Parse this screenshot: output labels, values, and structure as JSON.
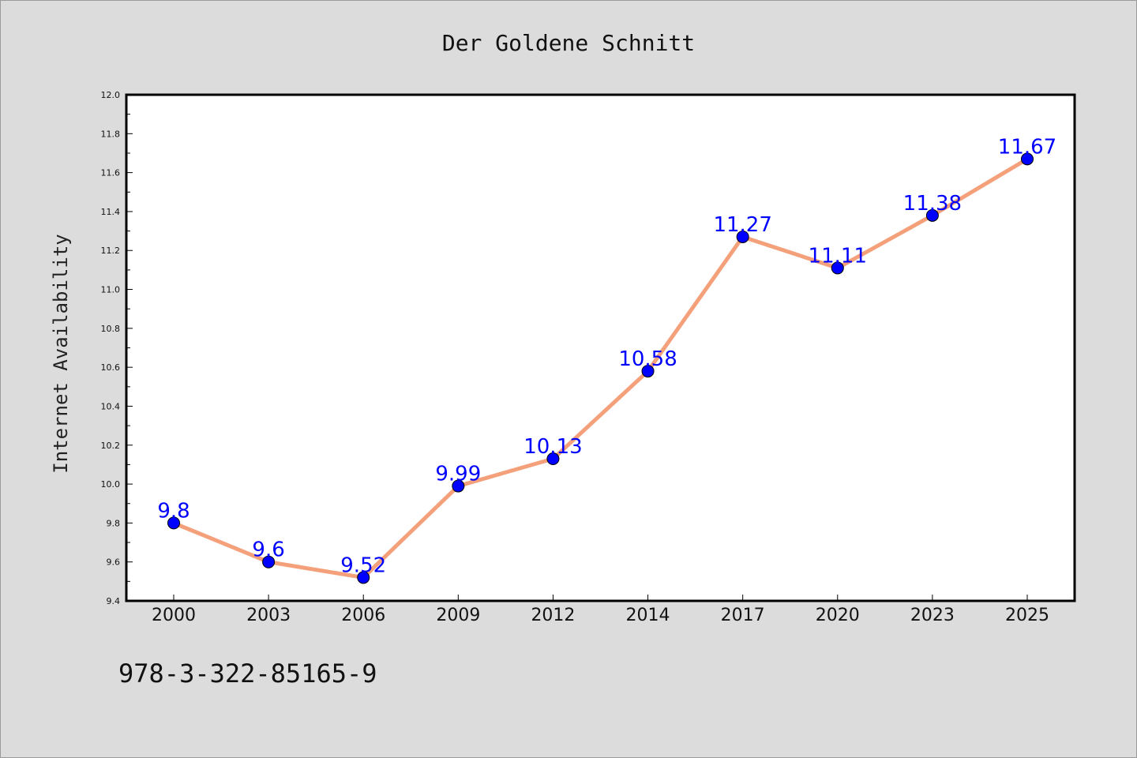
{
  "chart_data": {
    "type": "line",
    "title": "Der Goldene Schnitt",
    "xlabel": "",
    "ylabel": "Internet Availability",
    "categories": [
      "2000",
      "2003",
      "2006",
      "2009",
      "2012",
      "2014",
      "2017",
      "2020",
      "2023",
      "2025"
    ],
    "series": [
      {
        "values": [
          9.8,
          9.6,
          9.52,
          9.99,
          10.13,
          10.58,
          11.27,
          11.11,
          11.38,
          11.67
        ],
        "labels": [
          "9.8",
          "9.6",
          "9.52",
          "9.99",
          "10.13",
          "10.58",
          "11.27",
          "11.11",
          "11.38",
          "11.67"
        ]
      }
    ],
    "ylim": [
      9.4,
      12.0
    ],
    "yticks": [
      "9.4",
      "9.6",
      "9.8",
      "10.0",
      "10.2",
      "10.4",
      "10.6",
      "10.8",
      "11.0",
      "11.2",
      "11.4",
      "11.6",
      "11.8",
      "12.0"
    ],
    "grid": false,
    "legend": "none",
    "line_color": "#f4a07a",
    "marker_color": "#0000ff",
    "label_color": "#0000ff",
    "background_color": "#dcdcdc",
    "plot_background": "#ffffff"
  },
  "footer": {
    "isbn": "978-3-322-85165-9"
  }
}
